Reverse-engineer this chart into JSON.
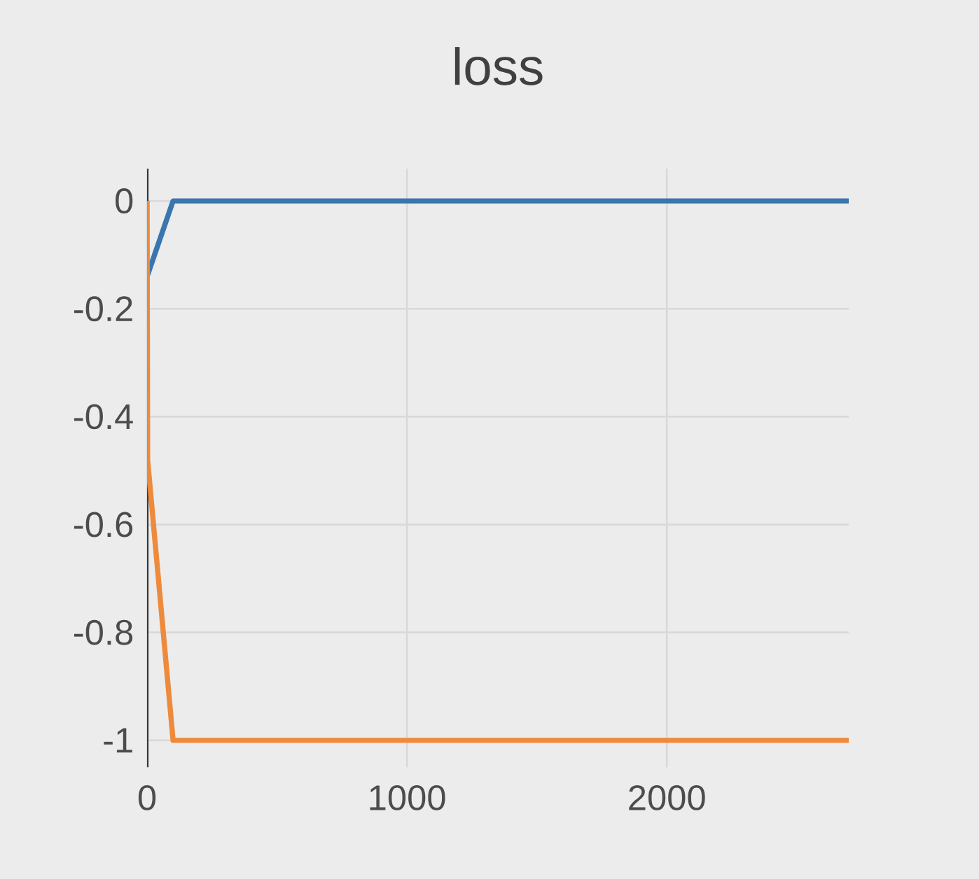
{
  "chart_data": {
    "type": "line",
    "title": "loss",
    "series": [
      {
        "color": "#3a75ad",
        "x": [
          0,
          100,
          2700
        ],
        "values": [
          -0.14,
          0,
          0
        ]
      },
      {
        "color": "#ee8a3c",
        "x": [
          0,
          2,
          100,
          2700
        ],
        "values": [
          0,
          -0.48,
          -1,
          -1
        ]
      }
    ],
    "xlim": [
      0,
      2700
    ],
    "ylim": [
      -1.05,
      0.06
    ],
    "xticks": [
      0,
      1000,
      2000
    ],
    "yticks": [
      0,
      -0.2,
      -0.4,
      -0.6,
      -0.8,
      -1
    ],
    "grid": true,
    "marker": "none",
    "line_style": "solid"
  }
}
